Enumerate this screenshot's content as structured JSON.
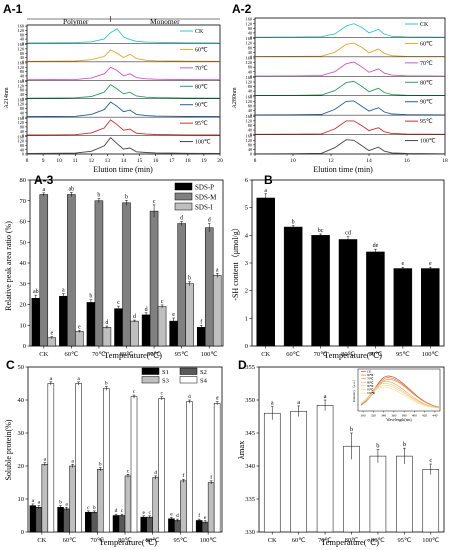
{
  "chart_data": [
    {
      "panel": "A-1",
      "type": "line",
      "xlabel": "Elution time (min)",
      "ylabel": "A214nm",
      "xlim": [
        8,
        20
      ],
      "x_ticks": [
        8,
        9,
        10,
        11,
        12,
        13,
        14,
        15,
        16,
        17,
        18,
        19,
        20
      ],
      "y_ticks": [
        0,
        40,
        80,
        120,
        160
      ],
      "region_labels": [
        "Polymer",
        "Monomer"
      ],
      "region_split": 13.2,
      "series": [
        {
          "name": "CK",
          "color": "#2ec9c9",
          "x": [
            8,
            9.5,
            11,
            12,
            12.8,
            13.2,
            13.6,
            14.0,
            14.4,
            14.8,
            15.4,
            16,
            17,
            18,
            20
          ],
          "y": [
            5,
            6,
            8,
            15,
            40,
            100,
            135,
            60,
            35,
            20,
            12,
            10,
            8,
            6,
            5
          ]
        },
        {
          "name": "60℃",
          "color": "#e4a52a",
          "x": [
            8,
            9.5,
            11,
            12,
            12.8,
            13.2,
            13.6,
            14.0,
            14.4,
            14.8,
            15.4,
            16,
            17,
            18,
            20
          ],
          "y": [
            5,
            6,
            8,
            20,
            50,
            110,
            80,
            40,
            70,
            30,
            14,
            10,
            8,
            6,
            5
          ]
        },
        {
          "name": "70℃",
          "color": "#cf55cf",
          "x": [
            8,
            9.5,
            11,
            12,
            12.8,
            13.2,
            13.6,
            14.0,
            14.4,
            14.8,
            15.4,
            16,
            17,
            18,
            20
          ],
          "y": [
            5,
            6,
            8,
            20,
            60,
            120,
            90,
            40,
            60,
            25,
            14,
            10,
            8,
            6,
            5
          ]
        },
        {
          "name": "80℃",
          "color": "#2aa062",
          "x": [
            8,
            9.5,
            11,
            12,
            12.8,
            13.2,
            13.6,
            14.0,
            14.4,
            14.8,
            15.4,
            16,
            17,
            18,
            20
          ],
          "y": [
            5,
            6,
            8,
            20,
            60,
            130,
            90,
            45,
            60,
            25,
            14,
            10,
            8,
            6,
            5
          ]
        },
        {
          "name": "90℃",
          "color": "#1f5fa8",
          "x": [
            8,
            9.5,
            11,
            12,
            12.8,
            13.2,
            13.6,
            14.0,
            14.4,
            14.8,
            15.4,
            16,
            17,
            18,
            20
          ],
          "y": [
            5,
            6,
            8,
            25,
            70,
            140,
            100,
            50,
            65,
            25,
            14,
            10,
            8,
            6,
            5
          ]
        },
        {
          "name": "95℃",
          "color": "#d42a2a",
          "x": [
            8,
            9.5,
            11,
            12,
            12.8,
            13.2,
            13.6,
            14.0,
            14.4,
            14.8,
            15.4,
            16,
            17,
            18,
            20
          ],
          "y": [
            5,
            6,
            8,
            25,
            70,
            145,
            100,
            50,
            60,
            22,
            14,
            10,
            8,
            6,
            5
          ]
        },
        {
          "name": "100℃",
          "color": "#444444",
          "x": [
            8,
            9.5,
            11,
            12,
            12.8,
            13.2,
            13.6,
            14.0,
            14.4,
            14.8,
            15.4,
            16,
            17,
            18,
            20
          ],
          "y": [
            5,
            6,
            8,
            25,
            75,
            150,
            95,
            45,
            55,
            20,
            14,
            10,
            8,
            6,
            5
          ]
        }
      ]
    },
    {
      "panel": "A-2",
      "type": "line",
      "xlabel": "Elution time (min)",
      "ylabel": "A280nm",
      "xlim": [
        8,
        18
      ],
      "x_ticks": [
        8,
        10,
        12,
        14,
        16,
        18
      ],
      "y_ticks": [
        0,
        40,
        80,
        120,
        160
      ],
      "series": [
        {
          "name": "CK",
          "color": "#2ec9c9",
          "x": [
            8,
            10,
            11.5,
            12.2,
            12.8,
            13.2,
            13.6,
            14.0,
            14.5,
            14.8,
            15.2,
            16,
            18
          ],
          "y": [
            2,
            3,
            6,
            30,
            100,
            120,
            90,
            40,
            70,
            30,
            10,
            4,
            2
          ]
        },
        {
          "name": "60℃",
          "color": "#e4a52a",
          "x": [
            8,
            10,
            11.5,
            12.2,
            12.8,
            13.2,
            13.6,
            14.0,
            14.5,
            14.8,
            15.2,
            16,
            18
          ],
          "y": [
            2,
            3,
            6,
            40,
            110,
            120,
            85,
            35,
            70,
            30,
            10,
            4,
            2
          ]
        },
        {
          "name": "70℃",
          "color": "#cf55cf",
          "x": [
            8,
            10,
            11.5,
            12.2,
            12.8,
            13.2,
            13.6,
            14.0,
            14.5,
            14.8,
            15.2,
            16,
            18
          ],
          "y": [
            2,
            3,
            6,
            40,
            110,
            125,
            85,
            35,
            65,
            28,
            10,
            4,
            2
          ]
        },
        {
          "name": "80℃",
          "color": "#2aa062",
          "x": [
            8,
            10,
            11.5,
            12.2,
            12.8,
            13.2,
            13.6,
            14.0,
            14.5,
            14.8,
            15.2,
            16,
            18
          ],
          "y": [
            2,
            3,
            6,
            45,
            115,
            125,
            85,
            35,
            65,
            28,
            10,
            4,
            2
          ]
        },
        {
          "name": "90℃",
          "color": "#1f5fa8",
          "x": [
            8,
            10,
            11.5,
            12.2,
            12.8,
            13.2,
            13.6,
            14.0,
            14.5,
            14.8,
            15.2,
            16,
            18
          ],
          "y": [
            2,
            3,
            6,
            50,
            120,
            125,
            80,
            35,
            65,
            28,
            10,
            4,
            2
          ]
        },
        {
          "name": "95℃",
          "color": "#d42a2a",
          "x": [
            8,
            10,
            11.5,
            12.2,
            12.8,
            13.2,
            13.6,
            14.0,
            14.5,
            14.8,
            15.2,
            16,
            18
          ],
          "y": [
            2,
            3,
            6,
            50,
            120,
            120,
            80,
            35,
            60,
            25,
            10,
            4,
            2
          ]
        },
        {
          "name": "100℃",
          "color": "#444444",
          "x": [
            8,
            10,
            11.5,
            12.2,
            12.8,
            13.2,
            13.6,
            14.0,
            14.5,
            14.8,
            15.2,
            16,
            18
          ],
          "y": [
            2,
            3,
            6,
            55,
            125,
            120,
            75,
            30,
            60,
            25,
            10,
            4,
            2
          ]
        }
      ]
    },
    {
      "panel": "A-3",
      "type": "bar",
      "xlabel": "Temperature(℃)",
      "ylabel": "Relative peak area ratio (%)",
      "ylim": [
        0,
        80
      ],
      "y_ticks": [
        0,
        10,
        20,
        30,
        40,
        50,
        60,
        70,
        80
      ],
      "legend": "top-right",
      "categories": [
        "CK",
        "60℃",
        "70℃",
        "80℃",
        "90℃",
        "95℃",
        "100℃"
      ],
      "series": [
        {
          "name": "SDS-P",
          "color": "#000000",
          "values": [
            23,
            24,
            21,
            18,
            15,
            12,
            9
          ],
          "errors": [
            1.5,
            1.2,
            1.3,
            1.2,
            1.0,
            1.5,
            1.0
          ],
          "letters": [
            "ab",
            "a",
            "b",
            "c",
            "d",
            "e",
            "f"
          ]
        },
        {
          "name": "SDS-M",
          "color": "#808080",
          "values": [
            73,
            73,
            70,
            69,
            65,
            59,
            57
          ],
          "errors": [
            0.8,
            1.0,
            1.0,
            1.2,
            3.0,
            1.0,
            2.0
          ],
          "letters": [
            "a",
            "ab",
            "b",
            "b",
            "c",
            "d",
            "d"
          ]
        },
        {
          "name": "SDS-I",
          "color": "#bfbfbf",
          "values": [
            4,
            7,
            9,
            12,
            19,
            30,
            34
          ],
          "errors": [
            0.5,
            0.5,
            0.6,
            0.5,
            0.8,
            1.0,
            1.0
          ],
          "letters": [
            "e",
            "e",
            "d",
            "d",
            "c",
            "b",
            "a"
          ]
        }
      ]
    },
    {
      "panel": "B",
      "type": "bar",
      "xlabel": "Temperature(℃)",
      "ylabel": "-SH content（μmol/g）",
      "ylim": [
        0,
        6
      ],
      "y_ticks": [
        0,
        1,
        2,
        3,
        4,
        5,
        6
      ],
      "categories": [
        "CK",
        "60℃",
        "70℃",
        "80℃",
        "90℃",
        "95℃",
        "100℃"
      ],
      "series": [
        {
          "color": "#000000",
          "values": [
            5.35,
            4.3,
            4.0,
            3.85,
            3.4,
            2.8,
            2.8
          ],
          "errors": [
            0.15,
            0.05,
            0.05,
            0.1,
            0.1,
            0.05,
            0.05
          ],
          "letters": [
            "a",
            "b",
            "bc",
            "cd",
            "de",
            "e",
            "e"
          ]
        }
      ]
    },
    {
      "panel": "C",
      "type": "bar",
      "xlabel": "Temperature(℃)",
      "ylabel": "Soluble protein(%)",
      "ylim": [
        0,
        50
      ],
      "y_ticks": [
        0,
        10,
        20,
        30,
        40,
        50
      ],
      "legend": "top-right",
      "categories": [
        "CK",
        "60℃",
        "70℃",
        "80℃",
        "90℃",
        "95℃",
        "100℃"
      ],
      "series": [
        {
          "name": "S1",
          "color": "#000000",
          "values": [
            8,
            7.5,
            6,
            5,
            4.5,
            4,
            3.5
          ],
          "errors": [
            0.5,
            0.5,
            0.4,
            0.4,
            0.4,
            0.4,
            0.4
          ],
          "letters": [
            "a",
            "b",
            "c",
            "d",
            "e",
            "e",
            "f"
          ]
        },
        {
          "name": "S2",
          "color": "#595959",
          "values": [
            7.5,
            7,
            6,
            5,
            4.5,
            3.5,
            3
          ],
          "errors": [
            0.5,
            0.5,
            0.4,
            0.4,
            0.4,
            0.4,
            0.4
          ],
          "letters": [
            "a",
            "a",
            "b",
            "c",
            "c",
            "d",
            "e"
          ]
        },
        {
          "name": "S3",
          "color": "#bfbfbf",
          "values": [
            20.5,
            20,
            19,
            17,
            16.5,
            15.5,
            15
          ],
          "errors": [
            0.5,
            0.5,
            0.5,
            0.5,
            0.5,
            0.5,
            0.5
          ],
          "letters": [
            "a",
            "a",
            "b",
            "c",
            "d",
            "f",
            "f"
          ]
        },
        {
          "name": "S4",
          "color": "#ffffff",
          "values": [
            45,
            45,
            43.5,
            41,
            40.5,
            39.5,
            39
          ],
          "errors": [
            0.5,
            0.5,
            0.6,
            0.5,
            0.5,
            0.5,
            0.5
          ],
          "letters": [
            "a",
            "a",
            "b",
            "c",
            "c",
            "d",
            "d"
          ]
        }
      ]
    },
    {
      "panel": "D",
      "type": "bar",
      "xlabel": "Temperature(℃)",
      "ylabel": "λmax",
      "ylim": [
        330,
        355
      ],
      "y_ticks": [
        330,
        335,
        340,
        345,
        350,
        355
      ],
      "categories": [
        "CK",
        "60℃",
        "70℃",
        "80℃",
        "90℃",
        "95℃",
        "100℃"
      ],
      "series": [
        {
          "color": "#ffffff",
          "values": [
            348,
            348.3,
            349.2,
            343,
            341.5,
            341.5,
            339.5
          ],
          "errors": [
            1.0,
            0.8,
            0.8,
            2.0,
            1.0,
            1.2,
            0.8
          ],
          "letters": [
            "a",
            "a",
            "a",
            "b",
            "b",
            "b",
            "c"
          ]
        }
      ],
      "inset": {
        "type": "line",
        "xlabel": "Wavelength(nm)",
        "ylabel": "Intensity（a.u.）",
        "x_ticks": [
          300,
          320,
          340,
          360,
          380,
          400,
          420,
          440
        ],
        "series": [
          {
            "name": "CK",
            "color": "#d94d30",
            "peak": 348,
            "amp": 1.0
          },
          {
            "name": "60℃",
            "color": "#e27a45",
            "peak": 348,
            "amp": 0.95
          },
          {
            "name": "70℃",
            "color": "#e8995a",
            "peak": 349,
            "amp": 0.9
          },
          {
            "name": "80℃",
            "color": "#eeb36e",
            "peak": 343,
            "amp": 0.84
          },
          {
            "name": "90℃",
            "color": "#f2c882",
            "peak": 341.5,
            "amp": 0.78
          },
          {
            "name": "95℃",
            "color": "#f5d796",
            "peak": 341.5,
            "amp": 0.72
          },
          {
            "name": "100℃",
            "color": "#f7e3aa",
            "peak": 339.5,
            "amp": 0.66
          }
        ]
      }
    }
  ]
}
